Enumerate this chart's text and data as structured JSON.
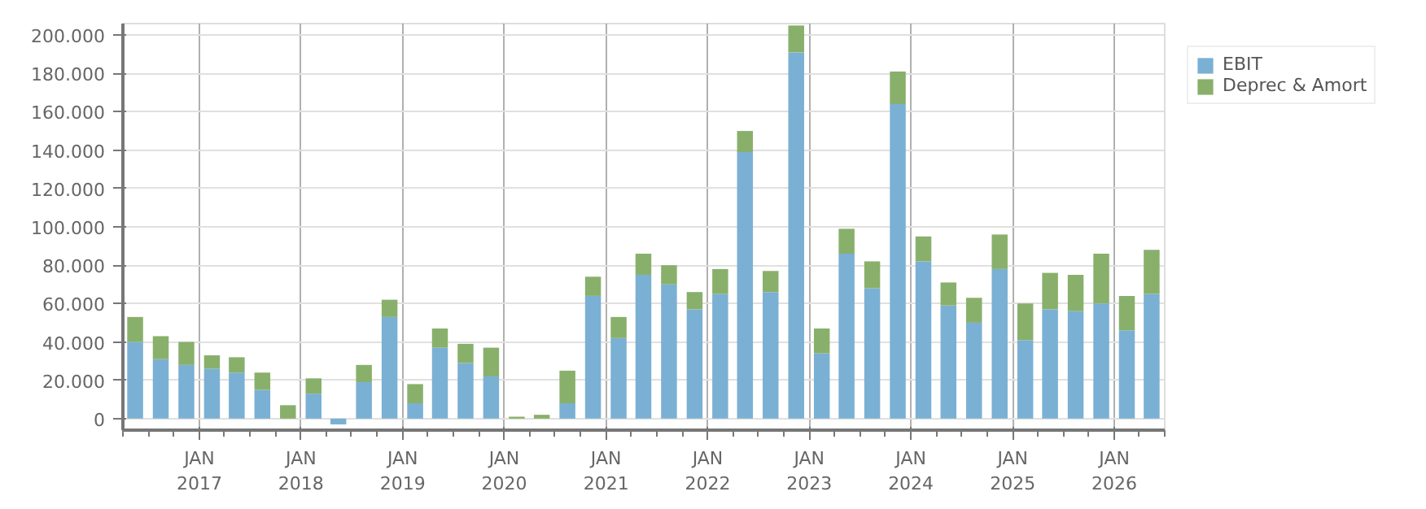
{
  "chart_data": {
    "type": "bar",
    "stacked": true,
    "x": [
      "2016-05-15",
      "2016-08-15",
      "2016-11-15",
      "2017-02-15",
      "2017-05-15",
      "2017-08-15",
      "2017-11-15",
      "2018-02-15",
      "2018-05-15",
      "2018-08-15",
      "2018-11-15",
      "2019-02-15",
      "2019-05-15",
      "2019-08-15",
      "2019-11-15",
      "2020-02-15",
      "2020-05-15",
      "2020-08-15",
      "2020-11-15",
      "2021-02-15",
      "2021-05-15",
      "2021-08-15",
      "2021-11-15",
      "2022-02-15",
      "2022-05-15",
      "2022-08-15",
      "2022-11-15",
      "2023-02-15",
      "2023-05-15",
      "2023-08-15",
      "2023-11-15",
      "2024-02-15",
      "2024-05-15",
      "2024-08-15",
      "2024-11-15",
      "2025-02-15",
      "2025-05-15",
      "2025-08-15",
      "2025-11-15",
      "2026-02-15",
      "2026-05-15"
    ],
    "series": [
      {
        "name": "EBIT",
        "color": "#7ab0d4",
        "values": [
          40000,
          31000,
          28000,
          26000,
          24000,
          15000,
          0,
          13000,
          -3000,
          19000,
          53000,
          8000,
          37000,
          29000,
          22000,
          0,
          0,
          8000,
          64000,
          42000,
          75000,
          70000,
          57000,
          65000,
          139000,
          66000,
          191000,
          34000,
          86000,
          68000,
          164000,
          82000,
          59000,
          50000,
          78000,
          41000,
          57000,
          56000,
          60000,
          46000,
          65000
        ]
      },
      {
        "name": "Deprec & Amort",
        "color": "#89b06b",
        "values": [
          13000,
          12000,
          12000,
          7000,
          8000,
          9000,
          7000,
          8000,
          0,
          9000,
          9000,
          10000,
          10000,
          10000,
          15000,
          1000,
          2000,
          17000,
          10000,
          11000,
          11000,
          10000,
          9000,
          13000,
          11000,
          11000,
          14000,
          13000,
          13000,
          14000,
          17000,
          13000,
          12000,
          13000,
          18000,
          19000,
          19000,
          19000,
          26000,
          18000,
          23000
        ]
      }
    ],
    "xlim": [
      "2016-04-01",
      "2026-07-01"
    ],
    "xticks": [
      {
        "value": "2017-01-01",
        "label": "JAN\n2017"
      },
      {
        "value": "2018-01-01",
        "label": "JAN\n2018"
      },
      {
        "value": "2019-01-01",
        "label": "JAN\n2019"
      },
      {
        "value": "2020-01-01",
        "label": "JAN\n2020"
      },
      {
        "value": "2021-01-01",
        "label": "JAN\n2021"
      },
      {
        "value": "2022-01-01",
        "label": "JAN\n2022"
      },
      {
        "value": "2023-01-01",
        "label": "JAN\n2023"
      },
      {
        "value": "2024-01-01",
        "label": "JAN\n2024"
      },
      {
        "value": "2025-01-01",
        "label": "JAN\n2025"
      },
      {
        "value": "2026-01-01",
        "label": "JAN\n2026"
      }
    ],
    "ylim": [
      -6000,
      206000
    ],
    "yticks": [
      {
        "value": 0,
        "label": "0"
      },
      {
        "value": 20000,
        "label": "20.000"
      },
      {
        "value": 40000,
        "label": "40.000"
      },
      {
        "value": 60000,
        "label": "60.000"
      },
      {
        "value": 80000,
        "label": "80.000"
      },
      {
        "value": 100000,
        "label": "100.000"
      },
      {
        "value": 120000,
        "label": "120.000"
      },
      {
        "value": 140000,
        "label": "140.000"
      },
      {
        "value": 160000,
        "label": "160.000"
      },
      {
        "value": 180000,
        "label": "180.000"
      },
      {
        "value": 200000,
        "label": "200.000"
      }
    ],
    "grid": true,
    "legend": "top right"
  }
}
